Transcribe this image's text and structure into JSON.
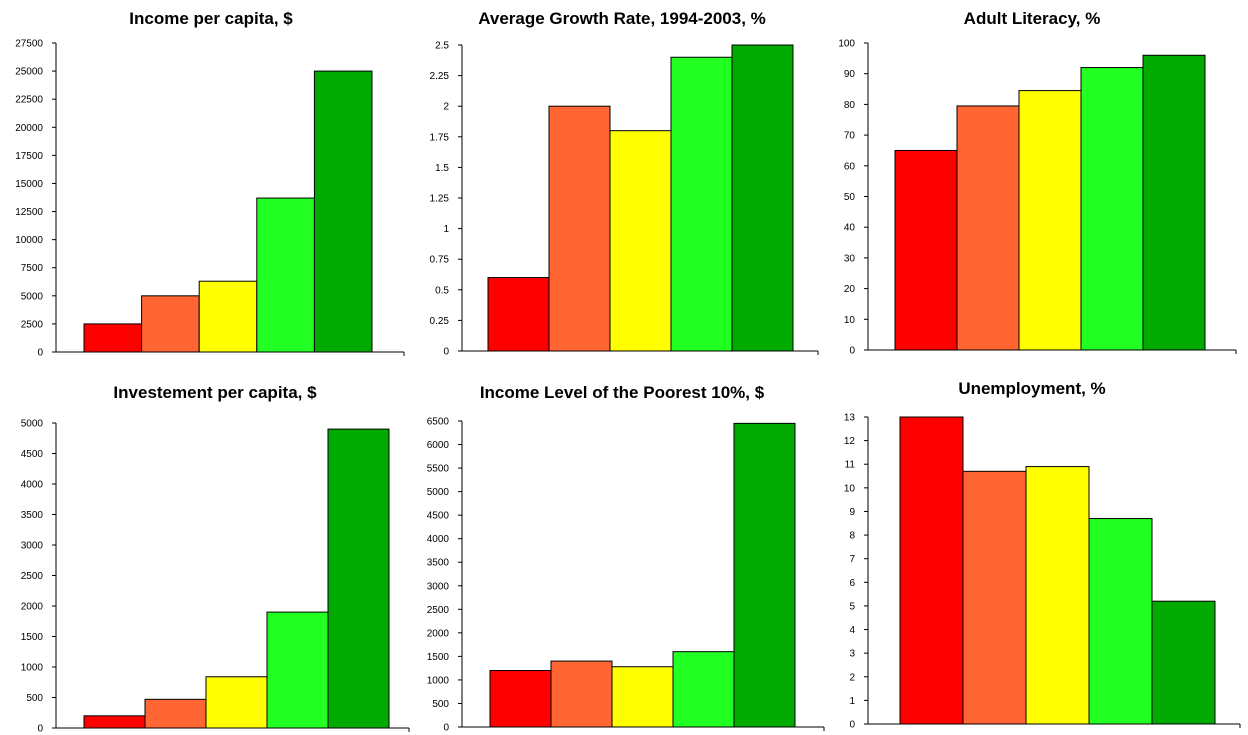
{
  "colors": [
    "#ff0000",
    "#ff6633",
    "#ffff00",
    "#22ff22",
    "#00aa00"
  ],
  "chart_data": [
    {
      "type": "bar",
      "title": "Income per capita, $",
      "values": [
        2500,
        5000,
        6300,
        13700,
        25000
      ],
      "ylim": [
        0,
        27500
      ],
      "yticks": [
        0,
        2500,
        5000,
        7500,
        10000,
        12500,
        15000,
        17500,
        20000,
        22500,
        25000,
        27500
      ],
      "grid": false
    },
    {
      "type": "bar",
      "title": "Average Growth Rate, 1994-2003, %",
      "values": [
        0.6,
        2.0,
        1.8,
        2.4,
        2.5
      ],
      "ylim": [
        0,
        2.5
      ],
      "yticks": [
        0,
        0.25,
        0.5,
        0.75,
        1,
        1.25,
        1.5,
        1.75,
        2,
        2.25,
        2.5
      ],
      "grid": false
    },
    {
      "type": "bar",
      "title": "Adult Literacy, %",
      "values": [
        65,
        79.5,
        84.5,
        92,
        96
      ],
      "ylim": [
        0,
        100
      ],
      "yticks": [
        0,
        10,
        20,
        30,
        40,
        50,
        60,
        70,
        80,
        90,
        100
      ],
      "grid": false
    },
    {
      "type": "bar",
      "title": "Investement per capita, $",
      "values": [
        200,
        470,
        840,
        1900,
        4900
      ],
      "ylim": [
        0,
        5000
      ],
      "yticks": [
        0,
        500,
        1000,
        1500,
        2000,
        2500,
        3000,
        3500,
        4000,
        4500,
        5000
      ],
      "grid": false
    },
    {
      "type": "bar",
      "title": "Income Level of the Poorest 10%, $",
      "values": [
        1200,
        1400,
        1280,
        1600,
        6450
      ],
      "ylim": [
        0,
        6500
      ],
      "yticks": [
        0,
        500,
        1000,
        1500,
        2000,
        2500,
        3000,
        3500,
        4000,
        4500,
        5000,
        5500,
        6000,
        6500
      ],
      "grid": false
    },
    {
      "type": "bar",
      "title": "Unemployment, %",
      "values": [
        13,
        10.7,
        10.9,
        8.7,
        5.2
      ],
      "ylim": [
        0,
        13
      ],
      "yticks": [
        0,
        1,
        2,
        3,
        4,
        5,
        6,
        7,
        8,
        9,
        10,
        11,
        12,
        13
      ],
      "grid": false
    }
  ]
}
